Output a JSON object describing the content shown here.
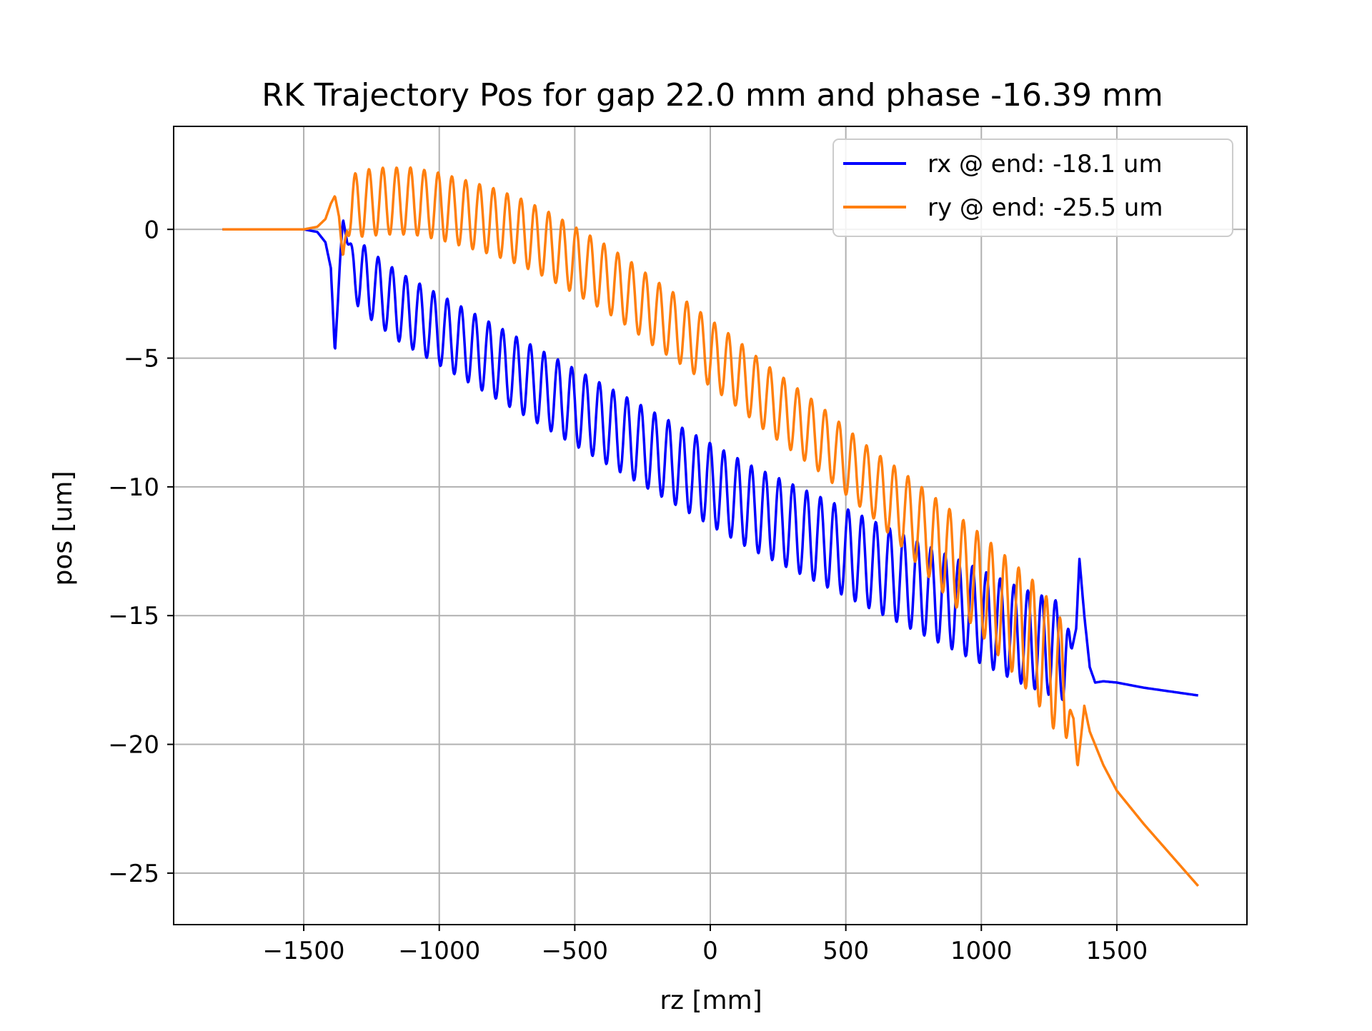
{
  "chart_data": {
    "type": "line",
    "title": "RK Trajectory Pos for gap 22.0 mm and phase -16.39 mm",
    "xlabel": "rz [mm]",
    "ylabel": "pos [um]",
    "xlim": [
      -1980,
      1980
    ],
    "ylim": [
      -27,
      4
    ],
    "xticks": [
      -1500,
      -1000,
      -500,
      0,
      500,
      1000,
      1500
    ],
    "xtick_labels": [
      "−1500",
      "−1000",
      "−500",
      "0",
      "500",
      "1000",
      "1500"
    ],
    "yticks": [
      0,
      -5,
      -10,
      -15,
      -20,
      -25
    ],
    "ytick_labels": [
      "0",
      "−5",
      "−10",
      "−15",
      "−20",
      "−25"
    ],
    "grid": true,
    "legend_position": "top-right",
    "series": [
      {
        "name": "rx @ end: -18.1 um",
        "color": "#0000ff",
        "x": [
          -1800,
          -1600,
          -1500,
          -1450,
          -1420,
          -1400,
          -1385,
          -1375,
          -1365,
          -1355,
          -1340,
          -1310,
          -1250,
          -1150,
          -1050,
          -950,
          -850,
          -750,
          -650,
          -550,
          -450,
          -350,
          -250,
          -150,
          -50,
          50,
          150,
          250,
          350,
          450,
          550,
          650,
          750,
          850,
          950,
          1050,
          1150,
          1250,
          1330,
          1350,
          1362,
          1380,
          1400,
          1420,
          1450,
          1500,
          1600,
          1700,
          1800
        ],
        "y": [
          0,
          0,
          0,
          -0.1,
          -0.5,
          -1.5,
          -4.8,
          -3,
          -1,
          0.4,
          -0.5,
          -1.6,
          -2.2,
          -3.0,
          -3.6,
          -4.2,
          -4.8,
          -5.4,
          -6.0,
          -6.6,
          -7.2,
          -7.8,
          -8.4,
          -9.0,
          -9.6,
          -10.2,
          -10.8,
          -11.3,
          -11.8,
          -12.3,
          -12.8,
          -13.3,
          -13.8,
          -14.3,
          -14.8,
          -15.3,
          -15.8,
          -16.2,
          -16.5,
          -15.5,
          -12.8,
          -15.0,
          -17.0,
          -17.6,
          -17.55,
          -17.6,
          -17.8,
          -17.95,
          -18.1
        ]
      },
      {
        "name": "ry @ end: -25.5 um",
        "color": "#ff7f0e",
        "x": [
          -1800,
          -1600,
          -1500,
          -1450,
          -1420,
          -1400,
          -1385,
          -1370,
          -1355,
          -1340,
          -1300,
          -1200,
          -1100,
          -1000,
          -900,
          -800,
          -700,
          -600,
          -500,
          -400,
          -300,
          -200,
          -100,
          0,
          100,
          200,
          300,
          400,
          500,
          600,
          700,
          800,
          900,
          1000,
          1100,
          1200,
          1280,
          1320,
          1340,
          1355,
          1370,
          1380,
          1400,
          1450,
          1500,
          1600,
          1700,
          1800
        ],
        "y": [
          0,
          0,
          0,
          0.1,
          0.4,
          1.0,
          1.3,
          0.5,
          -1.2,
          0.5,
          1.0,
          1.1,
          1.1,
          0.9,
          0.6,
          0.3,
          -0.1,
          -0.6,
          -1.2,
          -1.8,
          -2.5,
          -3.3,
          -4.0,
          -4.8,
          -5.6,
          -6.5,
          -7.3,
          -8.1,
          -9.0,
          -9.9,
          -10.8,
          -11.8,
          -12.8,
          -13.8,
          -14.9,
          -16.0,
          -17.2,
          -18.4,
          -19.0,
          -20.9,
          -19.5,
          -18.5,
          -19.5,
          -20.8,
          -21.8,
          -23.1,
          -24.3,
          -25.5
        ]
      }
    ]
  }
}
